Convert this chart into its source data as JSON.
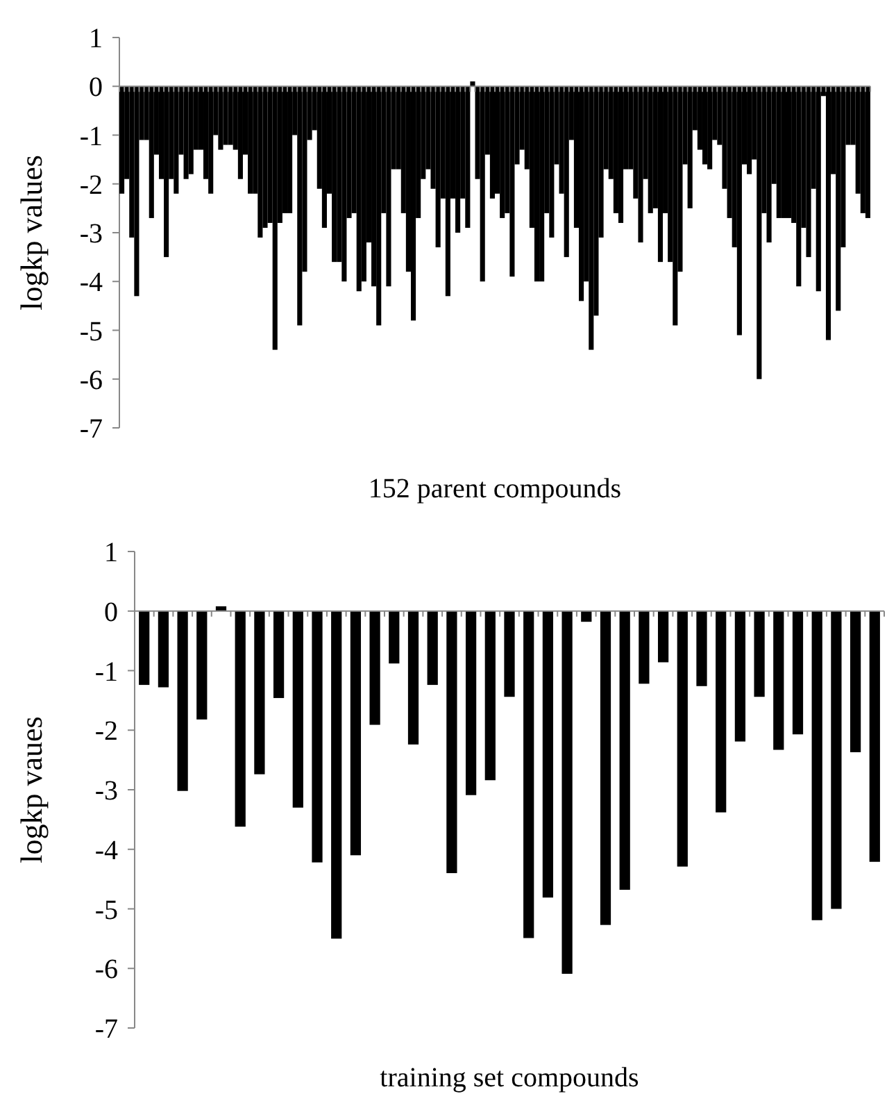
{
  "chart_data": [
    {
      "type": "bar",
      "xlabel": "152 parent compounds",
      "ylabel": "logkp values",
      "color": "#000000",
      "ylim": [
        -7,
        1
      ],
      "yticks": [
        -7,
        -6,
        -5,
        -4,
        -3,
        -2,
        -1,
        0,
        1
      ],
      "categories": [
        null,
        null,
        null,
        null,
        null,
        null,
        null,
        null,
        null,
        null,
        null,
        null,
        null,
        null,
        null,
        null,
        null,
        null,
        null,
        null,
        null,
        null,
        null,
        null,
        null,
        null,
        null,
        null,
        null,
        null,
        null,
        null,
        null,
        null,
        null,
        null,
        null,
        null,
        null,
        null,
        null,
        null,
        null,
        null,
        null,
        null,
        null,
        null,
        null,
        null,
        null,
        null,
        null,
        null,
        null,
        null,
        null,
        null,
        null,
        null,
        null,
        null,
        null,
        null,
        null,
        null,
        null,
        null,
        null,
        null,
        null,
        null,
        null,
        null,
        null,
        null,
        null,
        null,
        null,
        null,
        null,
        null,
        null,
        null,
        null,
        null,
        null,
        null,
        null,
        null,
        null,
        null,
        null,
        null,
        null,
        null,
        null,
        null,
        null,
        null,
        null,
        null,
        null,
        null,
        null,
        null,
        null,
        null,
        null,
        null,
        null,
        null,
        null,
        null,
        null,
        null,
        null,
        null,
        null,
        null,
        null,
        null,
        null,
        null,
        null,
        null,
        null,
        null,
        null,
        null,
        null,
        null,
        null,
        null,
        null,
        null,
        null,
        null,
        null,
        null,
        null,
        null,
        null,
        null,
        null,
        null,
        null,
        null,
        null,
        null,
        null,
        null
      ],
      "values": [
        -2.2,
        -1.9,
        -3.1,
        -4.3,
        -1.1,
        -1.1,
        -2.7,
        -1.4,
        -1.9,
        -3.5,
        -1.9,
        -2.2,
        -1.4,
        -1.9,
        -1.8,
        -1.3,
        -1.3,
        -1.9,
        -2.2,
        -1.0,
        -1.3,
        -1.2,
        -1.2,
        -1.3,
        -1.9,
        -1.4,
        -2.2,
        -2.2,
        -3.1,
        -2.9,
        -2.8,
        -5.4,
        -2.8,
        -2.6,
        -2.6,
        -1.0,
        -4.9,
        -3.8,
        -1.1,
        -0.9,
        -2.1,
        -2.9,
        -2.2,
        -3.6,
        -3.6,
        -4.0,
        -2.7,
        -2.6,
        -4.2,
        -4.0,
        -3.2,
        -4.1,
        -4.9,
        -2.6,
        -4.1,
        -1.7,
        -1.7,
        -2.6,
        -3.8,
        -4.8,
        -2.7,
        -1.9,
        -1.7,
        -2.1,
        -3.3,
        -2.3,
        -4.3,
        -2.3,
        -3.0,
        -2.3,
        -2.9,
        0.1,
        -1.9,
        -4.0,
        -1.4,
        -2.3,
        -2.2,
        -2.7,
        -2.6,
        -3.9,
        -1.6,
        -1.3,
        -1.7,
        -2.9,
        -4.0,
        -4.0,
        -2.6,
        -3.1,
        -1.6,
        -2.2,
        -3.5,
        -1.1,
        -2.9,
        -4.4,
        -4.0,
        -5.4,
        -4.7,
        -3.1,
        -1.7,
        -1.9,
        -2.6,
        -2.8,
        -1.7,
        -1.7,
        -2.3,
        -3.2,
        -1.9,
        -2.6,
        -2.5,
        -3.6,
        -2.6,
        -3.6,
        -4.9,
        -3.8,
        -1.6,
        -2.5,
        -0.9,
        -1.3,
        -1.6,
        -1.7,
        -1.1,
        -1.2,
        -2.1,
        -2.7,
        -3.3,
        -5.1,
        -1.6,
        -1.8,
        -1.5,
        -6.0,
        -2.6,
        -3.2,
        -2.0,
        -2.7,
        -2.7,
        -2.7,
        -2.8,
        -4.1,
        -2.9,
        -3.5,
        -2.1,
        -4.2,
        -0.2,
        -5.2,
        -1.8,
        -4.6,
        -3.3,
        -1.2,
        -1.2,
        -2.2,
        -2.6,
        -2.7
      ]
    },
    {
      "type": "bar",
      "xlabel": "training set compounds",
      "ylabel": "logkp vaues",
      "color": "#000000",
      "ylim": [
        -7,
        1
      ],
      "yticks": [
        -7,
        -6,
        -5,
        -4,
        -3,
        -2,
        -1,
        0,
        1
      ],
      "categories": [
        null,
        null,
        null,
        null,
        null,
        null,
        null,
        null,
        null,
        null,
        null,
        null,
        null,
        null,
        null,
        null,
        null,
        null,
        null,
        null,
        null,
        null,
        null,
        null,
        null,
        null,
        null,
        null,
        null,
        null,
        null,
        null,
        null,
        null,
        null,
        null,
        null,
        null,
        null
      ],
      "values": [
        -1.24,
        -1.28,
        -3.02,
        -1.82,
        0.08,
        -3.62,
        -2.74,
        -1.46,
        -3.3,
        -4.22,
        -5.5,
        -4.1,
        -1.91,
        -0.88,
        -2.24,
        -1.24,
        -4.4,
        -3.09,
        -2.84,
        -1.44,
        -5.49,
        -4.81,
        -6.09,
        -0.18,
        -5.27,
        -4.68,
        -1.22,
        -0.86,
        -4.29,
        -1.26,
        -3.38,
        -2.19,
        -1.44,
        -2.33,
        -2.07,
        -5.19,
        -5.0,
        -2.37,
        -4.21
      ]
    }
  ]
}
